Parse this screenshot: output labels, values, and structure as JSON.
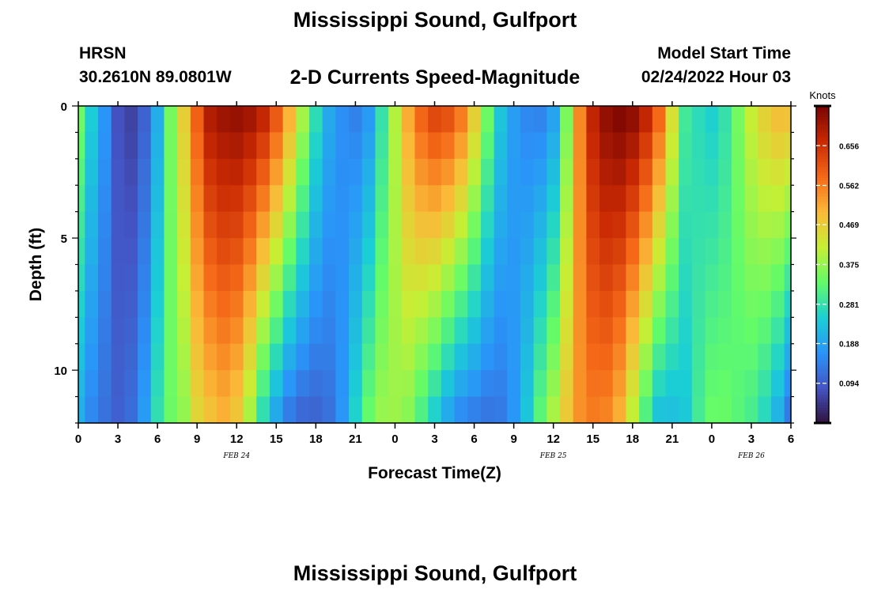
{
  "header": {
    "station_title": "Mississippi Sound, Gulfport",
    "station_code": "HRSN",
    "coordinates": "30.2610N  89.0801W",
    "plot_title": "2-D Currents Speed-Magnitude",
    "model_start_label": "Model Start Time",
    "model_start_value": "02/24/2022 Hour 03"
  },
  "footer": {
    "repeated_title": "Mississippi Sound, Gulfport"
  },
  "chart_data": {
    "type": "heatmap",
    "title": "2-D Currents Speed-Magnitude",
    "xlabel": "Forecast Time(Z)",
    "ylabel": "Depth (ft)",
    "x_range_hours": [
      0,
      54
    ],
    "x_tick_hours": [
      0,
      3,
      6,
      9,
      12,
      15,
      18,
      21,
      24,
      27,
      30,
      33,
      36,
      39,
      42,
      45,
      48,
      51,
      54
    ],
    "x_tick_labels": [
      "0",
      "3",
      "6",
      "9",
      "12",
      "15",
      "18",
      "21",
      "0",
      "3",
      "6",
      "9",
      "12",
      "15",
      "18",
      "21",
      "0",
      "3",
      "6"
    ],
    "date_labels": [
      {
        "text": "FEB 24",
        "hour": 12
      },
      {
        "text": "FEB 25",
        "hour": 36
      },
      {
        "text": "FEB 26",
        "hour": 51
      }
    ],
    "y_range": [
      0,
      12
    ],
    "y_ticks": [
      0,
      5,
      10
    ],
    "y_tick_labels": [
      "0",
      "5",
      "10"
    ],
    "colorbar": {
      "label": "Knots",
      "min": 0,
      "max": 0.75,
      "ticks": [
        0.094,
        0.188,
        0.281,
        0.375,
        0.469,
        0.562,
        0.656
      ],
      "tick_labels": [
        "0.094",
        "0.188",
        "0.281",
        "0.375",
        "0.469",
        "0.562",
        "0.656"
      ],
      "colormap": [
        "#30123b",
        "#4454c4",
        "#2a94f9",
        "#1bcfd4",
        "#62fb6a",
        "#c7ef34",
        "#fbb938",
        "#f56918",
        "#c92903",
        "#7a0403"
      ]
    },
    "time_step_hours": 1,
    "depth_levels": 12,
    "surface_speed": [
      0.35,
      0.25,
      0.17,
      0.08,
      0.06,
      0.1,
      0.2,
      0.35,
      0.47,
      0.6,
      0.7,
      0.72,
      0.73,
      0.72,
      0.69,
      0.62,
      0.52,
      0.4,
      0.28,
      0.2,
      0.16,
      0.14,
      0.17,
      0.28,
      0.4,
      0.52,
      0.6,
      0.64,
      0.63,
      0.58,
      0.48,
      0.35,
      0.24,
      0.18,
      0.15,
      0.14,
      0.18,
      0.35,
      0.55,
      0.68,
      0.73,
      0.75,
      0.74,
      0.69,
      0.6,
      0.45,
      0.3,
      0.27,
      0.25,
      0.28,
      0.35,
      0.42,
      0.47,
      0.5,
      0.5
    ],
    "bottom_speed": [
      0.2,
      0.15,
      0.12,
      0.1,
      0.12,
      0.18,
      0.28,
      0.34,
      0.37,
      0.45,
      0.48,
      0.5,
      0.47,
      0.38,
      0.26,
      0.18,
      0.12,
      0.1,
      0.1,
      0.12,
      0.17,
      0.26,
      0.34,
      0.38,
      0.38,
      0.36,
      0.3,
      0.24,
      0.18,
      0.14,
      0.13,
      0.12,
      0.13,
      0.17,
      0.24,
      0.33,
      0.4,
      0.48,
      0.54,
      0.56,
      0.55,
      0.5,
      0.4,
      0.3,
      0.22,
      0.22,
      0.24,
      0.3,
      0.34,
      0.34,
      0.32,
      0.3,
      0.26,
      0.2,
      0.12
    ]
  }
}
